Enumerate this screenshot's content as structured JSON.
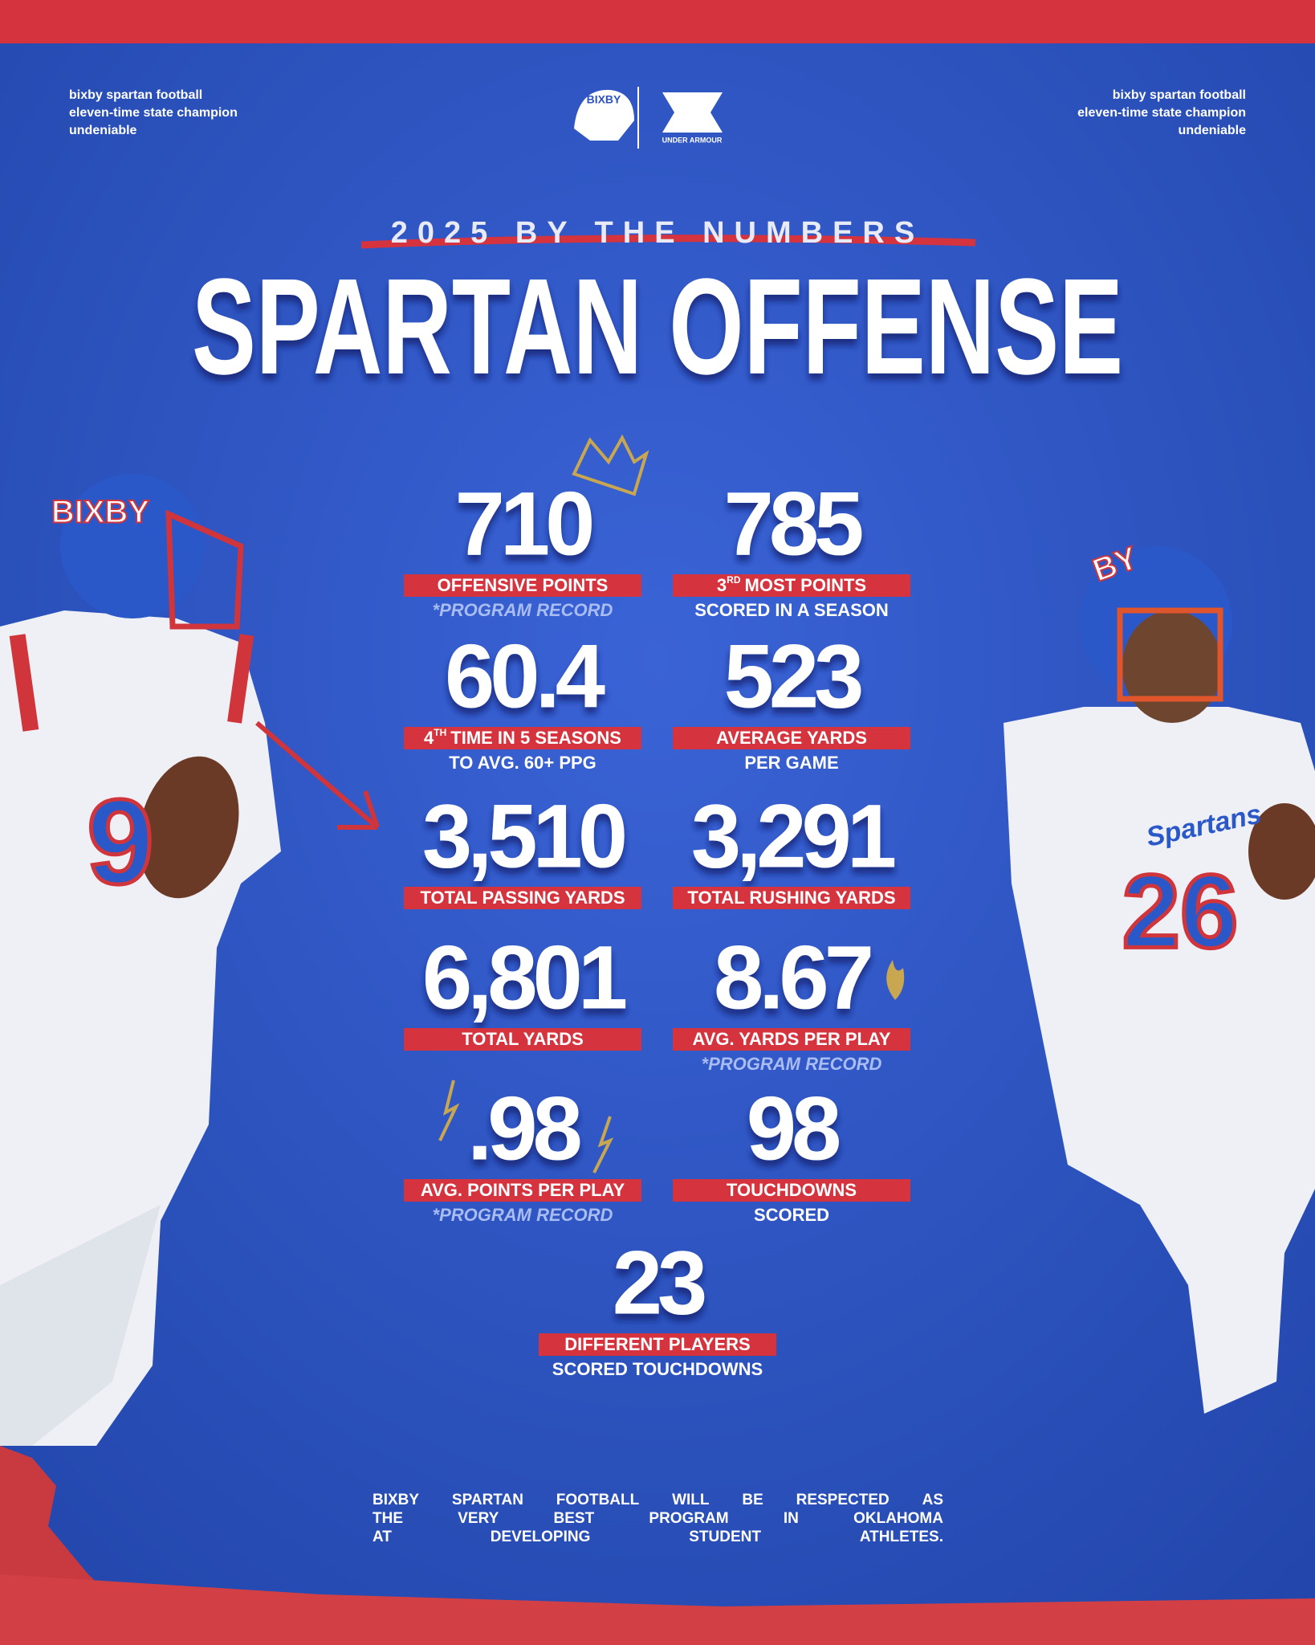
{
  "header": {
    "left_lines": [
      "bixby spartan football",
      "eleven-time state champion",
      "undeniable"
    ],
    "right_lines": [
      "bixby spartan football",
      "eleven-time state champion",
      "undeniable"
    ],
    "logo_school": "BIXBY",
    "logo_brand": "UNDER ARMOUR"
  },
  "subtitle": "2025 BY THE NUMBERS",
  "title": "SPARTAN OFFENSE",
  "stats": [
    {
      "value": "710",
      "label": "OFFENSIVE POINTS",
      "note": "*PROGRAM RECORD"
    },
    {
      "value": "785",
      "label": {
        "number": "3",
        "sup": "RD",
        "text": "MOST POINTS"
      },
      "note": "SCORED IN A SEASON"
    },
    {
      "value": "60.4",
      "label": {
        "number": "4",
        "sup": "TH",
        "text": "TIME IN 5 SEASONS"
      },
      "note": "TO AVG. 60+ PPG"
    },
    {
      "value": "523",
      "label": "AVERAGE YARDS",
      "note": "PER GAME"
    },
    {
      "value": "3,510",
      "label": "TOTAL PASSING YARDS"
    },
    {
      "value": "3,291",
      "label": "TOTAL RUSHING YARDS"
    },
    {
      "value": "6,801",
      "label": "TOTAL YARDS"
    },
    {
      "value": "8.67",
      "label": "AVG. YARDS PER PLAY",
      "note": "*PROGRAM RECORD"
    },
    {
      "value": ".98",
      "label": "AVG. POINTS PER PLAY",
      "note": "*PROGRAM RECORD"
    },
    {
      "value": "98",
      "label": "TOUCHDOWNS",
      "note": "SCORED"
    },
    {
      "value": "23",
      "label": "DIFFERENT PLAYERS",
      "note": "SCORED TOUCHDOWNS"
    }
  ],
  "players": [
    {
      "helmet": "BIXBY",
      "jersey": "9"
    },
    {
      "helmet": "BY",
      "chest": "Spartans",
      "jersey": "26"
    }
  ],
  "footer": [
    [
      "BIXBY",
      "SPARTAN",
      "FOOTBALL",
      "WILL",
      "BE",
      "RESPECTED",
      "AS"
    ],
    [
      "THE",
      "VERY",
      "BEST",
      "PROGRAM",
      "IN",
      "OKLAHOMA"
    ],
    [
      "AT",
      "DEVELOPING",
      "STUDENT",
      "ATHLETES."
    ]
  ]
}
